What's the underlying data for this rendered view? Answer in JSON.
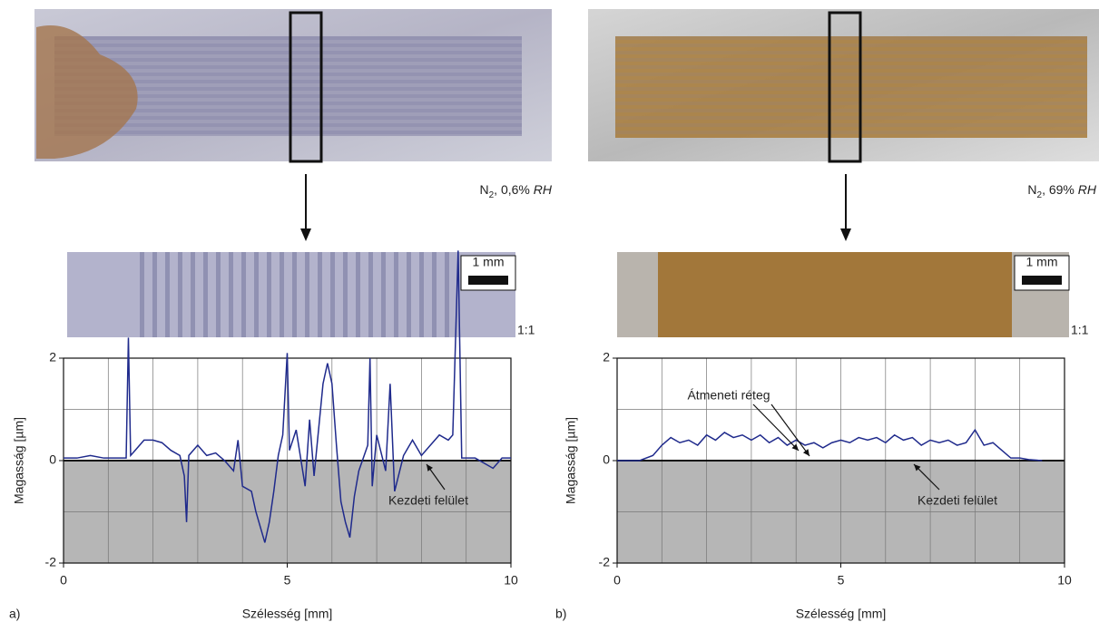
{
  "chart_data": [
    {
      "type": "line",
      "panel_label": "a)",
      "caption": {
        "main": "N",
        "sub": "2",
        "rest": ", 0,6% ",
        "italic": "RH"
      },
      "scale_bar": "1 mm",
      "ratio": "1:1",
      "xlabel": "Szélesség [mm]",
      "ylabel": "Magasság [µm]",
      "xlim": [
        0,
        10
      ],
      "ylim": [
        -2,
        2
      ],
      "xticks": [
        0,
        5,
        10
      ],
      "yticks": [
        -2,
        0,
        2
      ],
      "xgrid": [
        1,
        2,
        3,
        4,
        5,
        6,
        7,
        8,
        9
      ],
      "ygrid": [
        -1,
        0,
        1
      ],
      "grid": true,
      "annotations": [
        "Kezdeti felület"
      ],
      "series": [
        {
          "color": "#1f2a8c",
          "x": [
            0,
            0.3,
            0.6,
            0.9,
            1.2,
            1.4,
            1.45,
            1.5,
            1.6,
            1.8,
            2.0,
            2.2,
            2.4,
            2.6,
            2.7,
            2.75,
            2.8,
            3.0,
            3.2,
            3.4,
            3.6,
            3.8,
            3.9,
            4.0,
            4.2,
            4.3,
            4.4,
            4.5,
            4.6,
            4.7,
            4.8,
            4.9,
            5.0,
            5.05,
            5.2,
            5.4,
            5.5,
            5.6,
            5.8,
            5.9,
            6.0,
            6.1,
            6.2,
            6.3,
            6.4,
            6.5,
            6.6,
            6.8,
            6.85,
            6.9,
            7.0,
            7.2,
            7.3,
            7.4,
            7.6,
            7.8,
            8.0,
            8.2,
            8.4,
            8.6,
            8.7,
            8.82,
            8.9,
            9.2,
            9.5,
            9.6,
            9.8,
            10
          ],
          "values": [
            0.05,
            0.05,
            0.1,
            0.05,
            0.05,
            0.05,
            2.4,
            0.1,
            0.2,
            0.4,
            0.4,
            0.35,
            0.2,
            0.1,
            -0.3,
            -1.2,
            0.1,
            0.3,
            0.1,
            0.15,
            0.0,
            -0.2,
            0.4,
            -0.5,
            -0.6,
            -1.0,
            -1.3,
            -1.6,
            -1.2,
            -0.6,
            0.1,
            0.5,
            2.1,
            0.2,
            0.6,
            -0.5,
            0.8,
            -0.3,
            1.5,
            1.9,
            1.5,
            0.3,
            -0.8,
            -1.2,
            -1.5,
            -0.7,
            -0.2,
            0.3,
            2.0,
            -0.5,
            0.5,
            -0.2,
            1.5,
            -0.6,
            0.1,
            0.4,
            0.1,
            0.3,
            0.5,
            0.4,
            0.5,
            4.1,
            0.05,
            0.05,
            -0.1,
            -0.15,
            0.05,
            0.05
          ]
        }
      ]
    },
    {
      "type": "line",
      "panel_label": "b)",
      "caption": {
        "main": "N",
        "sub": "2",
        "rest": ", 69% ",
        "italic": "RH"
      },
      "scale_bar": "1 mm",
      "ratio": "1:1",
      "xlabel": "Szélesség [mm]",
      "ylabel": "Magasság [µm]",
      "xlim": [
        0,
        10
      ],
      "ylim": [
        -2,
        2
      ],
      "xticks": [
        0,
        5,
        10
      ],
      "yticks": [
        -2,
        0,
        2
      ],
      "xgrid": [
        1,
        2,
        3,
        4,
        5,
        6,
        7,
        8,
        9
      ],
      "ygrid": [
        -1,
        0,
        1
      ],
      "grid": true,
      "annotations": [
        "Átmeneti réteg",
        "Kezdeti felület"
      ],
      "series": [
        {
          "color": "#1f2a8c",
          "x": [
            0,
            0.5,
            0.8,
            1.0,
            1.2,
            1.4,
            1.6,
            1.8,
            2.0,
            2.2,
            2.4,
            2.6,
            2.8,
            3.0,
            3.2,
            3.4,
            3.6,
            3.8,
            4.0,
            4.2,
            4.4,
            4.6,
            4.8,
            5.0,
            5.2,
            5.4,
            5.6,
            5.8,
            6.0,
            6.2,
            6.4,
            6.6,
            6.8,
            7.0,
            7.2,
            7.4,
            7.6,
            7.8,
            8.0,
            8.2,
            8.4,
            8.6,
            8.8,
            9.0,
            9.2,
            9.5
          ],
          "values": [
            0,
            0,
            0.1,
            0.3,
            0.45,
            0.35,
            0.4,
            0.3,
            0.5,
            0.4,
            0.55,
            0.45,
            0.5,
            0.4,
            0.5,
            0.35,
            0.45,
            0.3,
            0.4,
            0.3,
            0.35,
            0.25,
            0.35,
            0.4,
            0.35,
            0.45,
            0.4,
            0.45,
            0.35,
            0.5,
            0.4,
            0.45,
            0.3,
            0.4,
            0.35,
            0.4,
            0.3,
            0.35,
            0.6,
            0.3,
            0.35,
            0.2,
            0.05,
            0.05,
            0.02,
            0
          ]
        }
      ]
    }
  ]
}
